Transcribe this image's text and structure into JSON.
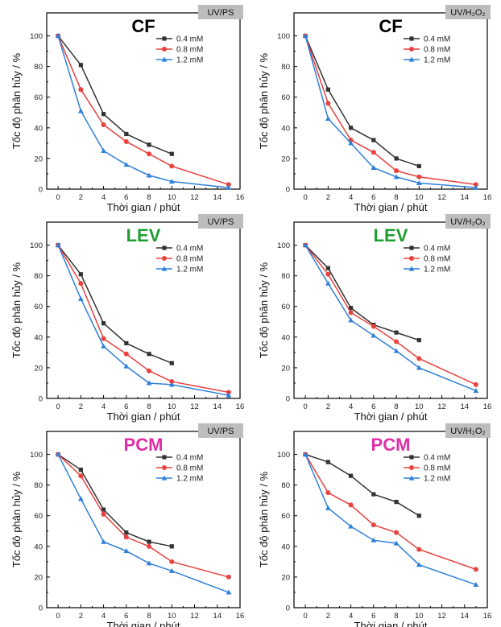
{
  "chart_data": [
    {
      "type": "line",
      "compound": "CF",
      "process_label": "UV/PS",
      "compound_color": "#000000",
      "xlabel": "Thời gian / phút",
      "ylabel": "Tốc độ phân hủy / %",
      "xlim": [
        -1,
        16
      ],
      "ylim": [
        0,
        115
      ],
      "xticks": [
        0,
        2,
        4,
        6,
        8,
        10,
        12,
        14,
        16
      ],
      "yticks": [
        0,
        20,
        40,
        60,
        80,
        100
      ],
      "legend_position": "upper-right",
      "series": [
        {
          "name": "0.4 mM",
          "color": "#333333",
          "marker": "square",
          "x": [
            0,
            2,
            4,
            6,
            8,
            10
          ],
          "values": [
            100,
            81,
            49,
            36,
            29,
            23
          ]
        },
        {
          "name": "0.8 mM",
          "color": "#e8423f",
          "marker": "circle",
          "x": [
            0,
            2,
            4,
            6,
            8,
            10,
            15
          ],
          "values": [
            100,
            65,
            42,
            31,
            23,
            15,
            3
          ]
        },
        {
          "name": "1.2 mM",
          "color": "#2f80d8",
          "marker": "triangle",
          "x": [
            0,
            2,
            4,
            6,
            8,
            10,
            15
          ],
          "values": [
            100,
            51,
            25,
            16,
            9,
            5,
            1
          ]
        }
      ]
    },
    {
      "type": "line",
      "compound": "CF",
      "process_label": "UV/H₂O₂",
      "compound_color": "#000000",
      "xlabel": "Thời gian / phút",
      "ylabel": "Tốc độ phân hủy / %",
      "xlim": [
        -1,
        16
      ],
      "ylim": [
        0,
        115
      ],
      "xticks": [
        0,
        2,
        4,
        6,
        8,
        10,
        12,
        14,
        16
      ],
      "yticks": [
        0,
        20,
        40,
        60,
        80,
        100
      ],
      "legend_position": "upper-right",
      "series": [
        {
          "name": "0.4 mM",
          "color": "#333333",
          "marker": "square",
          "x": [
            0,
            2,
            4,
            6,
            8,
            10
          ],
          "values": [
            100,
            65,
            40,
            32,
            20,
            15
          ]
        },
        {
          "name": "0.8 mM",
          "color": "#e8423f",
          "marker": "circle",
          "x": [
            0,
            2,
            4,
            6,
            8,
            10,
            15
          ],
          "values": [
            100,
            56,
            32,
            24,
            12,
            8,
            3
          ]
        },
        {
          "name": "1.2 mM",
          "color": "#2f80d8",
          "marker": "triangle",
          "x": [
            0,
            2,
            4,
            6,
            8,
            10,
            15
          ],
          "values": [
            100,
            46,
            30,
            14,
            8,
            4,
            1
          ]
        }
      ]
    },
    {
      "type": "line",
      "compound": "LEV",
      "process_label": "UV/PS",
      "compound_color": "#1e9e2e",
      "xlabel": "Thời gian / phút",
      "ylabel": "Tốc độ phân hủy / %",
      "xlim": [
        -1,
        16
      ],
      "ylim": [
        0,
        115
      ],
      "xticks": [
        0,
        2,
        4,
        6,
        8,
        10,
        12,
        14,
        16
      ],
      "yticks": [
        0,
        20,
        40,
        60,
        80,
        100
      ],
      "legend_position": "upper-right",
      "series": [
        {
          "name": "0.4 mM",
          "color": "#333333",
          "marker": "square",
          "x": [
            0,
            2,
            4,
            6,
            8,
            10
          ],
          "values": [
            100,
            81,
            49,
            36,
            29,
            23
          ]
        },
        {
          "name": "0.8 mM",
          "color": "#e8423f",
          "marker": "circle",
          "x": [
            0,
            2,
            4,
            6,
            8,
            10,
            15
          ],
          "values": [
            100,
            75,
            39,
            29,
            18,
            11,
            4
          ]
        },
        {
          "name": "1.2 mM",
          "color": "#2f80d8",
          "marker": "triangle",
          "x": [
            0,
            2,
            4,
            6,
            8,
            10,
            15
          ],
          "values": [
            100,
            65,
            34,
            21,
            10,
            9,
            2
          ]
        }
      ]
    },
    {
      "type": "line",
      "compound": "LEV",
      "process_label": "UV/H₂O₂",
      "compound_color": "#1e9e2e",
      "xlabel": "Thời gian / phút",
      "ylabel": "Tốc độ phân hủy / %",
      "xlim": [
        -1,
        16
      ],
      "ylim": [
        0,
        115
      ],
      "xticks": [
        0,
        2,
        4,
        6,
        8,
        10,
        12,
        14,
        16
      ],
      "yticks": [
        0,
        20,
        40,
        60,
        80,
        100
      ],
      "legend_position": "upper-right",
      "series": [
        {
          "name": "0.4 mM",
          "color": "#333333",
          "marker": "square",
          "x": [
            0,
            2,
            4,
            6,
            8,
            10
          ],
          "values": [
            100,
            85,
            59,
            48,
            43,
            38
          ]
        },
        {
          "name": "0.8 mM",
          "color": "#e8423f",
          "marker": "circle",
          "x": [
            0,
            2,
            4,
            6,
            8,
            10,
            15
          ],
          "values": [
            100,
            81,
            56,
            47,
            37,
            26,
            9
          ]
        },
        {
          "name": "1.2 mM",
          "color": "#2f80d8",
          "marker": "triangle",
          "x": [
            0,
            2,
            4,
            6,
            8,
            10,
            15
          ],
          "values": [
            100,
            75,
            51,
            41,
            31,
            20,
            5
          ]
        }
      ]
    },
    {
      "type": "line",
      "compound": "PCM",
      "process_label": "UV/PS",
      "compound_color": "#e02fa6",
      "xlabel": "Thời gian / phút",
      "ylabel": "Tốc độ phân hủy / %",
      "xlim": [
        -1,
        16
      ],
      "ylim": [
        0,
        115
      ],
      "xticks": [
        0,
        2,
        4,
        6,
        8,
        10,
        12,
        14,
        16
      ],
      "yticks": [
        0,
        20,
        40,
        60,
        80,
        100
      ],
      "legend_position": "upper-right",
      "series": [
        {
          "name": "0.4 mM",
          "color": "#333333",
          "marker": "square",
          "x": [
            0,
            2,
            4,
            6,
            8,
            10
          ],
          "values": [
            100,
            90,
            64,
            49,
            43,
            40
          ]
        },
        {
          "name": "0.8 mM",
          "color": "#e8423f",
          "marker": "circle",
          "x": [
            0,
            2,
            4,
            6,
            8,
            10,
            15
          ],
          "values": [
            100,
            86,
            61,
            46,
            40,
            30,
            20
          ]
        },
        {
          "name": "1.2 mM",
          "color": "#2f80d8",
          "marker": "triangle",
          "x": [
            0,
            2,
            4,
            6,
            8,
            10,
            15
          ],
          "values": [
            100,
            71,
            43,
            37,
            29,
            24,
            10
          ]
        }
      ]
    },
    {
      "type": "line",
      "compound": "PCM",
      "process_label": "UV/H₂O₂",
      "compound_color": "#e02fa6",
      "xlabel": "Thời gian / phút",
      "ylabel": "Tốc độ phân hủy / %",
      "xlim": [
        -1,
        16
      ],
      "ylim": [
        0,
        115
      ],
      "xticks": [
        0,
        2,
        4,
        6,
        8,
        10,
        12,
        14,
        16
      ],
      "yticks": [
        0,
        20,
        40,
        60,
        80,
        100
      ],
      "legend_position": "upper-right",
      "series": [
        {
          "name": "0.4 mM",
          "color": "#333333",
          "marker": "square",
          "x": [
            0,
            2,
            4,
            6,
            8,
            10
          ],
          "values": [
            100,
            95,
            86,
            74,
            69,
            60
          ]
        },
        {
          "name": "0.8 mM",
          "color": "#e8423f",
          "marker": "circle",
          "x": [
            0,
            2,
            4,
            6,
            8,
            10,
            15
          ],
          "values": [
            100,
            75,
            67,
            54,
            49,
            38,
            25
          ]
        },
        {
          "name": "1.2 mM",
          "color": "#2f80d8",
          "marker": "triangle",
          "x": [
            0,
            2,
            4,
            6,
            8,
            10,
            15
          ],
          "values": [
            100,
            65,
            53,
            44,
            42,
            28,
            15
          ]
        }
      ]
    }
  ]
}
